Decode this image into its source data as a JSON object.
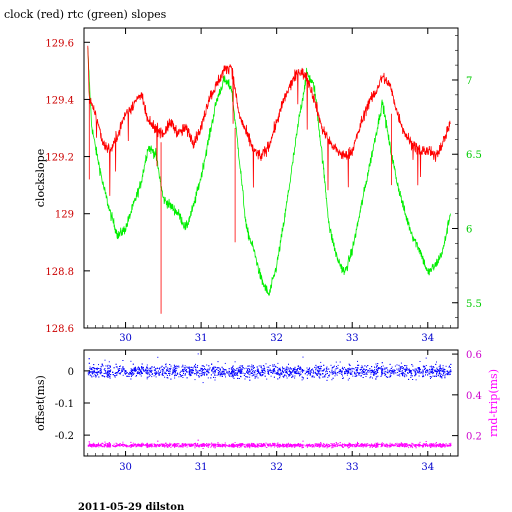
{
  "chart_data": [
    {
      "type": "line",
      "title": "clock (red) rtc (green) slopes",
      "ylabel": "clockslope",
      "xlim": [
        29.45,
        34.4
      ],
      "x_ticks": [
        30,
        31,
        32,
        33,
        34
      ],
      "x_tick_labels": [
        "30",
        "31",
        "32",
        "33",
        "34"
      ],
      "y_left_lim": [
        128.6,
        129.65
      ],
      "y_left_ticks": [
        128.6,
        128.8,
        129,
        129.2,
        129.4,
        129.6
      ],
      "y_left_tick_labels": [
        "128.6",
        "128.8",
        "129",
        "129.2",
        "129.4",
        "129.6"
      ],
      "y_right_lim": [
        5.33,
        7.35
      ],
      "y_right_ticks": [
        5.5,
        6,
        6.5,
        7
      ],
      "y_right_tick_labels": [
        "5.5",
        "6",
        "6.5",
        "7"
      ],
      "grid": false,
      "colors": {
        "clock": "#ff0000",
        "rtc": "#00ee00",
        "left_ticks": "#cc0000",
        "right_ticks": "#00cc00"
      },
      "series": [
        {
          "axis": "left",
          "x": [
            29.5,
            29.52,
            29.6,
            29.7,
            29.8,
            29.9,
            30.0,
            30.1,
            30.2,
            30.3,
            30.4,
            30.5,
            30.6,
            30.7,
            30.8,
            30.9,
            31.0,
            31.1,
            31.2,
            31.3,
            31.4,
            31.5,
            31.6,
            31.7,
            31.8,
            31.9,
            32.0,
            32.1,
            32.2,
            32.3,
            32.4,
            32.5,
            32.6,
            32.7,
            32.8,
            32.9,
            33.0,
            33.1,
            33.2,
            33.3,
            33.4,
            33.5,
            33.6,
            33.7,
            33.8,
            33.9,
            34.0,
            34.1,
            34.2,
            34.3
          ],
          "y": [
            129.6,
            129.4,
            129.35,
            129.25,
            129.22,
            129.28,
            129.35,
            129.38,
            129.42,
            129.32,
            129.3,
            129.28,
            129.32,
            129.28,
            129.3,
            129.25,
            129.3,
            129.4,
            129.45,
            129.5,
            129.52,
            129.35,
            129.28,
            129.22,
            129.2,
            129.24,
            129.32,
            129.4,
            129.46,
            129.5,
            129.48,
            129.4,
            129.3,
            129.25,
            129.22,
            129.2,
            129.22,
            129.3,
            129.38,
            129.42,
            129.48,
            129.45,
            129.35,
            129.28,
            129.24,
            129.22,
            129.22,
            129.2,
            129.25,
            129.32
          ]
        },
        {
          "axis": "right",
          "x": [
            29.5,
            29.55,
            29.6,
            29.7,
            29.8,
            29.9,
            30.0,
            30.1,
            30.2,
            30.3,
            30.4,
            30.5,
            30.6,
            30.7,
            30.8,
            30.9,
            31.0,
            31.1,
            31.2,
            31.3,
            31.4,
            31.5,
            31.6,
            31.7,
            31.8,
            31.9,
            32.0,
            32.1,
            32.2,
            32.3,
            32.4,
            32.5,
            32.6,
            32.7,
            32.8,
            32.9,
            33.0,
            33.1,
            33.2,
            33.3,
            33.4,
            33.5,
            33.6,
            33.7,
            33.8,
            33.9,
            34.0,
            34.1,
            34.2,
            34.3
          ],
          "y": [
            7.2,
            6.7,
            6.55,
            6.3,
            6.1,
            5.95,
            6.0,
            6.15,
            6.3,
            6.55,
            6.5,
            6.2,
            6.15,
            6.1,
            6.0,
            6.15,
            6.35,
            6.6,
            6.85,
            7.0,
            6.95,
            6.5,
            6.0,
            5.85,
            5.65,
            5.55,
            5.75,
            6.05,
            6.4,
            6.75,
            7.05,
            6.95,
            6.5,
            6.0,
            5.8,
            5.7,
            5.85,
            6.1,
            6.35,
            6.6,
            6.85,
            6.55,
            6.3,
            6.1,
            5.95,
            5.85,
            5.7,
            5.75,
            5.85,
            6.1
          ]
        }
      ]
    },
    {
      "type": "scatter",
      "ylabel": "offset(ms)",
      "y2label": "rnd-trip(ms)",
      "xlim": [
        29.45,
        34.4
      ],
      "x_ticks": [
        30,
        31,
        32,
        33,
        34
      ],
      "x_tick_labels": [
        "30",
        "31",
        "32",
        "33",
        "34"
      ],
      "y_left_lim": [
        -0.265,
        0.065
      ],
      "y_left_ticks": [
        0,
        -0.1,
        -0.2
      ],
      "y_left_tick_labels": [
        "0",
        "-0.1",
        "-0.2"
      ],
      "y_right_lim": [
        0.1,
        0.62
      ],
      "y_right_ticks": [
        0.2,
        0.4,
        0.6
      ],
      "y_right_tick_labels": [
        "0.2",
        "0.4",
        "0.6"
      ],
      "grid": false,
      "colors": {
        "offset": "#0000ff",
        "rndtrip": "#ff00ff",
        "left_ticks": "#000000",
        "right_ticks": "#cc00cc",
        "x_ticks": "#0000cc"
      },
      "series": [
        {
          "axis": "left",
          "x_range": [
            29.5,
            34.3
          ],
          "center": 0.0,
          "spread": 0.022
        },
        {
          "axis": "right",
          "x_range": [
            29.5,
            34.3
          ],
          "center": 0.155,
          "spread": 0.01
        }
      ]
    }
  ],
  "footer": {
    "text": "2011-05-29 dilston"
  }
}
